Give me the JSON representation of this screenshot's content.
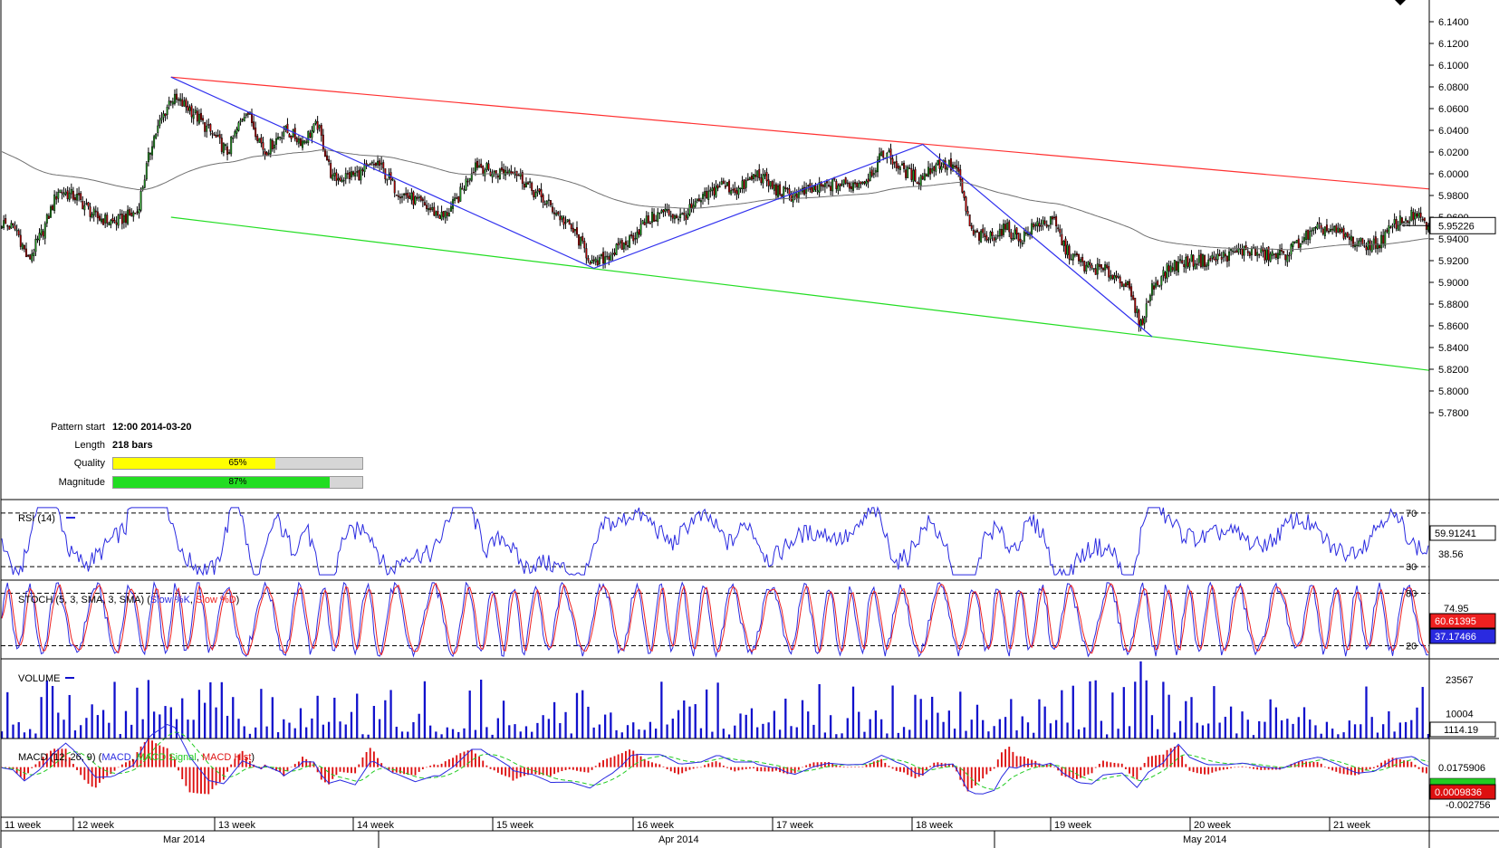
{
  "colors": {
    "frame": "#000000",
    "grid_dash": "#000000",
    "bull": "#22aa22",
    "bear": "#cc0000",
    "ma": "#707070",
    "resistance": "#ff3030",
    "support": "#22dd22",
    "zigzag": "#3030ee",
    "rsi": "#2a2ae0",
    "stoch_k": "#2a2ae0",
    "stoch_d": "#ee2020",
    "volume": "#1010cc",
    "macd_line": "#2a2ae0",
    "macd_signal": "#22cc22",
    "macd_hist": "#dd1010",
    "quality_fill": "#ffff00",
    "magnitude_fill": "#22dd22"
  },
  "pattern_info": {
    "start_label": "Pattern start",
    "start_value": "12:00 2014-03-20",
    "length_label": "Length",
    "length_value": "218 bars",
    "quality_label": "Quality",
    "quality_value": "65%",
    "quality_pct": 65,
    "magnitude_label": "Magnitude",
    "magnitude_value": "87%",
    "magnitude_pct": 87
  },
  "chart_data": [
    {
      "type": "candlestick",
      "panel": "price",
      "title": "",
      "ylim": [
        5.7,
        6.16
      ],
      "y_ticks": [
        "6.1400",
        "6.1200",
        "6.1000",
        "6.0800",
        "6.0600",
        "6.0400",
        "6.0200",
        "6.0000",
        "5.9800",
        "5.9600",
        "5.9400",
        "5.9200",
        "5.9000",
        "5.8800",
        "5.8600",
        "5.8400",
        "5.8200",
        "5.8000",
        "5.7800"
      ],
      "current_price": "5.95226",
      "close_path": [
        [
          0,
          5.955
        ],
        [
          8,
          5.948
        ],
        [
          14,
          5.92
        ],
        [
          22,
          5.948
        ],
        [
          30,
          5.985
        ],
        [
          40,
          5.978
        ],
        [
          50,
          5.96
        ],
        [
          60,
          5.955
        ],
        [
          72,
          5.965
        ],
        [
          80,
          6.03
        ],
        [
          90,
          6.07
        ],
        [
          100,
          6.06
        ],
        [
          110,
          6.04
        ],
        [
          120,
          6.02
        ],
        [
          130,
          6.06
        ],
        [
          140,
          6.02
        ],
        [
          150,
          6.04
        ],
        [
          160,
          6.03
        ],
        [
          168,
          6.045
        ],
        [
          176,
          5.995
        ],
        [
          190,
          6.0
        ],
        [
          200,
          6.01
        ],
        [
          210,
          5.985
        ],
        [
          225,
          5.97
        ],
        [
          235,
          5.96
        ],
        [
          242,
          5.975
        ],
        [
          252,
          6.01
        ],
        [
          262,
          6.0
        ],
        [
          272,
          6.005
        ],
        [
          282,
          5.985
        ],
        [
          292,
          5.97
        ],
        [
          305,
          5.945
        ],
        [
          315,
          5.915
        ],
        [
          322,
          5.925
        ],
        [
          332,
          5.935
        ],
        [
          342,
          5.955
        ],
        [
          352,
          5.965
        ],
        [
          362,
          5.96
        ],
        [
          372,
          5.975
        ],
        [
          382,
          5.99
        ],
        [
          392,
          5.985
        ],
        [
          402,
          6.0
        ],
        [
          412,
          5.985
        ],
        [
          420,
          5.98
        ],
        [
          432,
          5.985
        ],
        [
          442,
          5.99
        ],
        [
          452,
          5.99
        ],
        [
          460,
          5.995
        ],
        [
          470,
          6.02
        ],
        [
          478,
          6.005
        ],
        [
          488,
          5.995
        ],
        [
          498,
          6.01
        ],
        [
          508,
          6.005
        ],
        [
          516,
          5.945
        ],
        [
          524,
          5.94
        ],
        [
          534,
          5.95
        ],
        [
          542,
          5.94
        ],
        [
          552,
          5.955
        ],
        [
          560,
          5.955
        ],
        [
          566,
          5.93
        ],
        [
          576,
          5.915
        ],
        [
          588,
          5.91
        ],
        [
          598,
          5.9
        ],
        [
          606,
          5.86
        ],
        [
          612,
          5.895
        ],
        [
          622,
          5.915
        ],
        [
          632,
          5.92
        ],
        [
          642,
          5.92
        ],
        [
          652,
          5.925
        ],
        [
          662,
          5.93
        ],
        [
          672,
          5.925
        ],
        [
          682,
          5.925
        ],
        [
          692,
          5.94
        ],
        [
          702,
          5.95
        ],
        [
          712,
          5.945
        ],
        [
          722,
          5.935
        ],
        [
          732,
          5.935
        ],
        [
          742,
          5.955
        ],
        [
          752,
          5.962
        ],
        [
          758,
          5.952
        ]
      ]
    },
    {
      "type": "line",
      "panel": "rsi",
      "title": "RSI (14)",
      "ylim": [
        20,
        80
      ],
      "y_ticks": [
        "70",
        "30"
      ],
      "levels": [
        70,
        30
      ],
      "readouts": [
        "59.91241",
        "38.56"
      ]
    },
    {
      "type": "line",
      "panel": "stochastic",
      "title": "STOCH (5, 3, SMA, 3, SMA)",
      "legend": [
        "Slow %K",
        "Slow %D"
      ],
      "ylim": [
        5,
        95
      ],
      "y_ticks": [
        "80",
        "20"
      ],
      "levels": [
        80,
        20
      ],
      "readouts": [
        "74.95",
        "60.61395",
        "37.17466"
      ]
    },
    {
      "type": "bar",
      "panel": "volume",
      "title": "VOLUME",
      "ylim": [
        0,
        32000
      ],
      "y_ticks": [
        "23567",
        "10004"
      ],
      "readouts": [
        "1114.19"
      ]
    },
    {
      "type": "line",
      "panel": "macd",
      "title": "MACD (12, 26, 9)",
      "legend": [
        "MACD",
        "MACD Signal",
        "MACD Hist"
      ],
      "ylim": [
        -0.042,
        0.024
      ],
      "y_ticks": [
        "0.0175906"
      ],
      "readouts": [
        "0.0009836",
        "-0.002756"
      ]
    }
  ],
  "x_axis": {
    "weeks": [
      "11 week",
      "12 week",
      "13 week",
      "14 week",
      "15 week",
      "16 week",
      "17 week",
      "18 week",
      "19 week",
      "20 week",
      "21 week"
    ],
    "months": [
      "Mar 2014",
      "Apr 2014",
      "May 2014"
    ]
  }
}
